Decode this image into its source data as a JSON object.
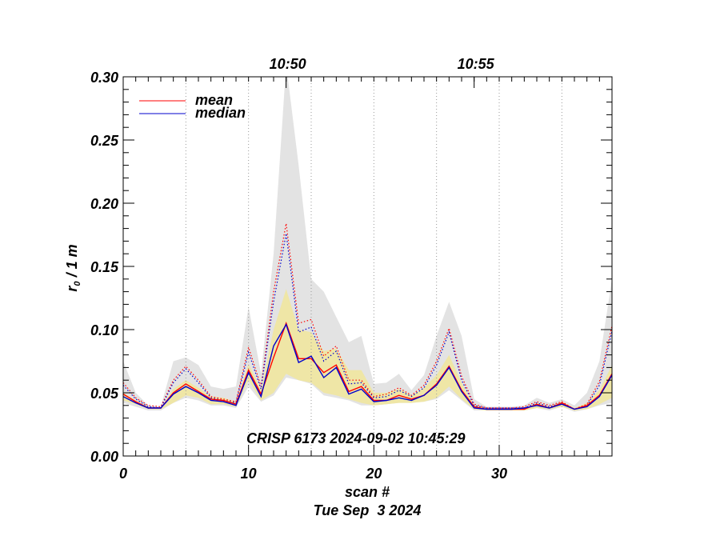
{
  "chart_data": {
    "type": "line",
    "title": "",
    "xlabel": "scan #",
    "date_label": "Tue Sep  3 2024",
    "ylabel_main": "r",
    "ylabel_sub": "0",
    "ylabel_unit": " / 1 m",
    "xlim": [
      0,
      39
    ],
    "ylim": [
      0,
      0.3
    ],
    "x_ticks": [
      0,
      10,
      20,
      30
    ],
    "x_tick_labels": [
      "0",
      "10",
      "20",
      "30"
    ],
    "y_ticks": [
      0.0,
      0.05,
      0.1,
      0.15,
      0.2,
      0.25,
      0.3
    ],
    "y_tick_labels": [
      "0.00",
      "0.05",
      "0.10",
      "0.15",
      "0.20",
      "0.25",
      "0.30"
    ],
    "top_axis_labels": [
      {
        "x": 13,
        "label": "10:50"
      },
      {
        "x": 28,
        "label": "10:55"
      }
    ],
    "time_gridlines_x": [
      5,
      10,
      15,
      20,
      25,
      30,
      35
    ],
    "annotation": "CRISP 6173 2024-09-02 10:45:29",
    "colors": {
      "mean": "#ff0000",
      "median": "#0000cc",
      "grey_band": "#e3e3e3",
      "yellow_band": "#efe6a6"
    },
    "legend": [
      {
        "label": "mean",
        "color": "#ff0000"
      },
      {
        "label": "median",
        "color": "#0000cc"
      }
    ],
    "x": [
      0,
      1,
      2,
      3,
      4,
      5,
      6,
      7,
      8,
      9,
      10,
      11,
      12,
      13,
      14,
      15,
      16,
      17,
      18,
      19,
      20,
      21,
      22,
      23,
      24,
      25,
      26,
      27,
      28,
      29,
      30,
      31,
      32,
      33,
      34,
      35,
      36,
      37,
      38,
      39
    ],
    "series": [
      {
        "name": "mean",
        "style": "solid",
        "color": "#ff0000",
        "values": [
          0.049,
          0.043,
          0.038,
          0.038,
          0.05,
          0.057,
          0.051,
          0.045,
          0.044,
          0.041,
          0.068,
          0.049,
          0.078,
          0.105,
          0.077,
          0.077,
          0.066,
          0.072,
          0.051,
          0.055,
          0.044,
          0.044,
          0.048,
          0.045,
          0.048,
          0.057,
          0.071,
          0.052,
          0.039,
          0.037,
          0.037,
          0.037,
          0.037,
          0.041,
          0.038,
          0.042,
          0.037,
          0.04,
          0.048,
          0.065
        ]
      },
      {
        "name": "median",
        "style": "solid",
        "color": "#0000cc",
        "values": [
          0.047,
          0.042,
          0.038,
          0.038,
          0.049,
          0.055,
          0.05,
          0.044,
          0.043,
          0.04,
          0.066,
          0.047,
          0.087,
          0.104,
          0.074,
          0.079,
          0.062,
          0.07,
          0.049,
          0.053,
          0.043,
          0.044,
          0.046,
          0.044,
          0.048,
          0.056,
          0.07,
          0.051,
          0.038,
          0.037,
          0.037,
          0.037,
          0.038,
          0.04,
          0.038,
          0.041,
          0.037,
          0.039,
          0.047,
          0.064
        ]
      },
      {
        "name": "mean (dotted)",
        "style": "dotted",
        "color": "#ff0000",
        "values": [
          0.058,
          0.046,
          0.04,
          0.039,
          0.06,
          0.071,
          0.06,
          0.047,
          0.045,
          0.043,
          0.086,
          0.055,
          0.13,
          0.184,
          0.105,
          0.108,
          0.079,
          0.087,
          0.06,
          0.06,
          0.047,
          0.049,
          0.054,
          0.048,
          0.056,
          0.075,
          0.101,
          0.063,
          0.041,
          0.038,
          0.038,
          0.038,
          0.039,
          0.043,
          0.04,
          0.043,
          0.037,
          0.041,
          0.059,
          0.103
        ]
      },
      {
        "name": "median (dotted)",
        "style": "dotted",
        "color": "#0000cc",
        "values": [
          0.056,
          0.045,
          0.039,
          0.038,
          0.058,
          0.069,
          0.058,
          0.046,
          0.044,
          0.042,
          0.082,
          0.053,
          0.122,
          0.176,
          0.098,
          0.102,
          0.075,
          0.083,
          0.057,
          0.058,
          0.046,
          0.047,
          0.052,
          0.047,
          0.054,
          0.072,
          0.098,
          0.06,
          0.04,
          0.038,
          0.038,
          0.038,
          0.038,
          0.042,
          0.039,
          0.042,
          0.037,
          0.04,
          0.056,
          0.099
        ]
      }
    ],
    "bands": [
      {
        "name": "grey_band",
        "upper": [
          0.075,
          0.05,
          0.04,
          0.039,
          0.075,
          0.078,
          0.072,
          0.055,
          0.053,
          0.055,
          0.118,
          0.065,
          0.16,
          0.31,
          0.23,
          0.14,
          0.13,
          0.11,
          0.09,
          0.095,
          0.057,
          0.058,
          0.065,
          0.052,
          0.064,
          0.095,
          0.122,
          0.095,
          0.045,
          0.039,
          0.039,
          0.039,
          0.04,
          0.046,
          0.042,
          0.045,
          0.04,
          0.05,
          0.075,
          0.14
        ],
        "lower": [
          0.042,
          0.039,
          0.036,
          0.036,
          0.042,
          0.046,
          0.044,
          0.04,
          0.04,
          0.038,
          0.055,
          0.043,
          0.048,
          0.062,
          0.06,
          0.057,
          0.048,
          0.046,
          0.044,
          0.04,
          0.04,
          0.041,
          0.042,
          0.042,
          0.043,
          0.045,
          0.052,
          0.044,
          0.036,
          0.036,
          0.036,
          0.036,
          0.036,
          0.038,
          0.036,
          0.039,
          0.035,
          0.037,
          0.04,
          0.042
        ]
      },
      {
        "name": "yellow_band",
        "upper": [
          0.05,
          0.044,
          0.039,
          0.038,
          0.053,
          0.06,
          0.054,
          0.047,
          0.046,
          0.043,
          0.073,
          0.053,
          0.1,
          0.132,
          0.1,
          0.098,
          0.083,
          0.085,
          0.068,
          0.068,
          0.05,
          0.05,
          0.053,
          0.048,
          0.054,
          0.064,
          0.08,
          0.058,
          0.04,
          0.038,
          0.038,
          0.038,
          0.038,
          0.042,
          0.039,
          0.043,
          0.038,
          0.042,
          0.052,
          0.072
        ]
      },
      {
        "name": "yellow_band_lower",
        "values": [
          0.044,
          0.041,
          0.037,
          0.037,
          0.042,
          0.048,
          0.046,
          0.041,
          0.041,
          0.039,
          0.06,
          0.044,
          0.05,
          0.065,
          0.06,
          0.058,
          0.05,
          0.048,
          0.045,
          0.042,
          0.04,
          0.041,
          0.042,
          0.042,
          0.043,
          0.046,
          0.055,
          0.045,
          0.037,
          0.036,
          0.036,
          0.036,
          0.036,
          0.038,
          0.037,
          0.039,
          0.036,
          0.037,
          0.041,
          0.046
        ]
      }
    ]
  }
}
